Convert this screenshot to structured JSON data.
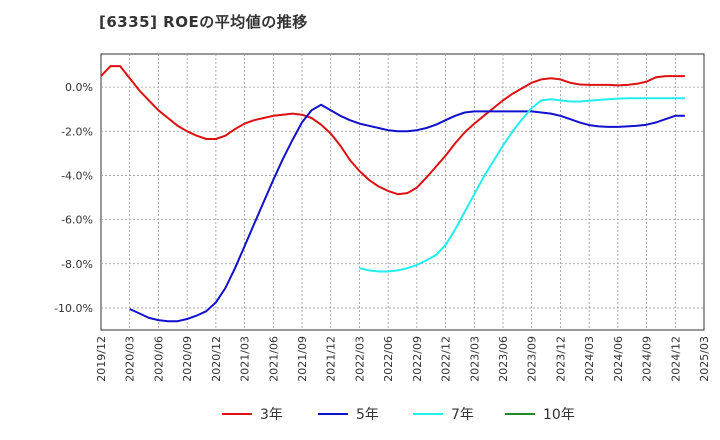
{
  "chart_data": {
    "type": "line",
    "title": "[6335]  ROEの平均値の推移",
    "xlabel": "",
    "ylabel": "",
    "ylim": [
      -11.0,
      1.5
    ],
    "yticks": [
      0,
      -2,
      -4,
      -6,
      -8,
      -10
    ],
    "ytick_labels": [
      "0.0%",
      "-2.0%",
      "-4.0%",
      "-6.0%",
      "-8.0%",
      "-10.0%"
    ],
    "xlim_months": [
      0,
      63
    ],
    "xticks_months": [
      0,
      3,
      6,
      9,
      12,
      15,
      18,
      21,
      24,
      27,
      30,
      33,
      36,
      39,
      42,
      45,
      48,
      51,
      54,
      57,
      60,
      63
    ],
    "xtick_labels": [
      "2019/12",
      "2020/03",
      "2020/06",
      "2020/09",
      "2020/12",
      "2021/03",
      "2021/06",
      "2021/09",
      "2021/12",
      "2022/03",
      "2022/06",
      "2022/09",
      "2022/12",
      "2023/03",
      "2023/06",
      "2023/09",
      "2023/12",
      "2024/03",
      "2024/06",
      "2024/09",
      "2024/12",
      "2025/03"
    ],
    "grid": true,
    "legend_position": "bottom",
    "series": [
      {
        "name": "3年",
        "color": "#dd1111",
        "x": [
          0,
          1,
          2,
          3,
          4,
          5,
          6,
          7,
          8,
          9,
          10,
          11,
          12,
          13,
          14,
          15,
          16,
          17,
          18,
          19,
          20,
          21,
          22,
          23,
          24,
          25,
          26,
          27,
          28,
          29,
          30,
          31,
          32,
          33,
          34,
          35,
          36,
          37,
          38,
          39,
          40,
          41,
          42,
          43,
          44,
          45,
          46,
          47,
          48,
          49,
          50,
          51,
          52,
          53,
          54,
          55,
          56,
          57,
          58,
          59,
          60,
          61
        ],
        "values": [
          0.5,
          0.95,
          0.95,
          0.4,
          -0.15,
          -0.6,
          -1.05,
          -1.4,
          -1.75,
          -2.0,
          -2.2,
          -2.35,
          -2.35,
          -2.2,
          -1.9,
          -1.65,
          -1.5,
          -1.4,
          -1.3,
          -1.25,
          -1.2,
          -1.25,
          -1.4,
          -1.7,
          -2.1,
          -2.65,
          -3.3,
          -3.8,
          -4.2,
          -4.5,
          -4.7,
          -4.85,
          -4.8,
          -4.55,
          -4.1,
          -3.6,
          -3.1,
          -2.55,
          -2.05,
          -1.65,
          -1.3,
          -0.95,
          -0.6,
          -0.3,
          -0.05,
          0.2,
          0.35,
          0.4,
          0.35,
          0.2,
          0.12,
          0.1,
          0.1,
          0.1,
          0.08,
          0.1,
          0.15,
          0.25,
          0.45,
          0.5,
          0.5,
          0.5
        ]
      },
      {
        "name": "5年",
        "color": "#1111cc",
        "x": [
          3,
          4,
          5,
          6,
          7,
          8,
          9,
          10,
          11,
          12,
          13,
          14,
          15,
          16,
          17,
          18,
          19,
          20,
          21,
          22,
          23,
          24,
          25,
          26,
          27,
          28,
          29,
          30,
          31,
          32,
          33,
          34,
          35,
          36,
          37,
          38,
          39,
          40,
          41,
          42,
          43,
          44,
          45,
          46,
          47,
          48,
          49,
          50,
          51,
          52,
          53,
          54,
          55,
          56,
          57,
          58,
          59,
          60,
          61
        ],
        "values": [
          -10.05,
          -10.25,
          -10.45,
          -10.55,
          -10.6,
          -10.6,
          -10.5,
          -10.35,
          -10.15,
          -9.75,
          -9.1,
          -8.2,
          -7.2,
          -6.2,
          -5.2,
          -4.2,
          -3.25,
          -2.4,
          -1.6,
          -1.05,
          -0.8,
          -1.05,
          -1.3,
          -1.5,
          -1.65,
          -1.75,
          -1.85,
          -1.95,
          -2.0,
          -2.0,
          -1.95,
          -1.85,
          -1.7,
          -1.5,
          -1.3,
          -1.15,
          -1.1,
          -1.1,
          -1.1,
          -1.1,
          -1.1,
          -1.1,
          -1.1,
          -1.15,
          -1.2,
          -1.3,
          -1.45,
          -1.6,
          -1.72,
          -1.78,
          -1.8,
          -1.8,
          -1.78,
          -1.75,
          -1.7,
          -1.6,
          -1.45,
          -1.3,
          -1.3
        ]
      },
      {
        "name": "7年",
        "color": "#22eeee",
        "x": [
          27,
          28,
          29,
          30,
          31,
          32,
          33,
          34,
          35,
          36,
          37,
          38,
          39,
          40,
          41,
          42,
          43,
          44,
          45,
          46,
          47,
          48,
          49,
          50,
          51,
          52,
          53,
          54,
          55,
          56,
          57,
          58,
          59,
          60,
          61
        ],
        "values": [
          -8.2,
          -8.3,
          -8.35,
          -8.35,
          -8.3,
          -8.2,
          -8.05,
          -7.85,
          -7.6,
          -7.15,
          -6.45,
          -5.65,
          -4.85,
          -4.05,
          -3.35,
          -2.65,
          -2.0,
          -1.45,
          -0.95,
          -0.6,
          -0.55,
          -0.6,
          -0.65,
          -0.65,
          -0.62,
          -0.58,
          -0.55,
          -0.52,
          -0.5,
          -0.5,
          -0.5,
          -0.5,
          -0.5,
          -0.5,
          -0.5
        ]
      },
      {
        "name": "10年",
        "color": "#228822",
        "x": [],
        "values": []
      }
    ]
  }
}
